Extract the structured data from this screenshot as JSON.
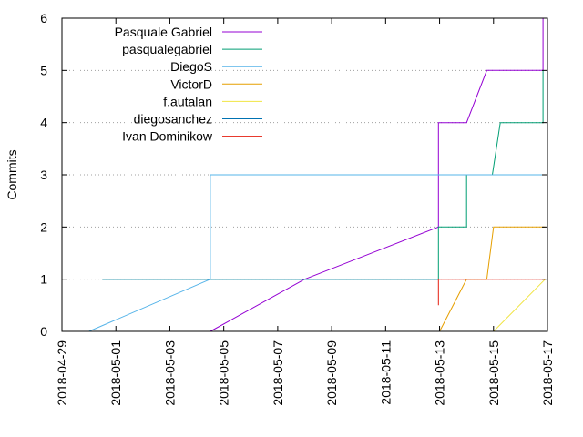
{
  "chart_data": {
    "type": "line",
    "title": "",
    "xlabel": "",
    "ylabel": "Commits",
    "xlim": [
      "2018-04-29",
      "2018-05-17"
    ],
    "ylim": [
      0,
      6
    ],
    "x_ticks": [
      "2018-04-29",
      "2018-05-01",
      "2018-05-03",
      "2018-05-05",
      "2018-05-07",
      "2018-05-09",
      "2018-05-11",
      "2018-05-13",
      "2018-05-15",
      "2018-05-17"
    ],
    "y_ticks": [
      0,
      1,
      2,
      3,
      4,
      5,
      6
    ],
    "grid": "horizontal dotted",
    "legend_position": "top-left",
    "series": [
      {
        "name": "Pasquale Gabriel",
        "color": "#9400d3",
        "points": [
          [
            "2018-05-04 12:00",
            0
          ],
          [
            "2018-05-08 00:00",
            1
          ],
          [
            "2018-05-12 23:00",
            2
          ],
          [
            "2018-05-12 23:00",
            4
          ],
          [
            "2018-05-14 00:00",
            4
          ],
          [
            "2018-05-14 18:00",
            5
          ],
          [
            "2018-05-16 20:00",
            5
          ],
          [
            "2018-05-16 20:00",
            6
          ]
        ]
      },
      {
        "name": "pasqualegabriel",
        "color": "#009e73",
        "points": [
          [
            "2018-04-30 12:00",
            1
          ],
          [
            "2018-05-12 23:00",
            1
          ],
          [
            "2018-05-12 23:00",
            2
          ],
          [
            "2018-05-14 00:00",
            2
          ],
          [
            "2018-05-14 00:00",
            3
          ],
          [
            "2018-05-14 23:00",
            3
          ],
          [
            "2018-05-15 06:00",
            4
          ],
          [
            "2018-05-16 20:00",
            4
          ],
          [
            "2018-05-16 20:00",
            5
          ]
        ]
      },
      {
        "name": "DiegoS",
        "color": "#56b4e9",
        "points": [
          [
            "2018-04-30 00:00",
            0
          ],
          [
            "2018-05-04 12:00",
            1
          ],
          [
            "2018-05-04 12:00",
            3
          ],
          [
            "2018-05-16 22:00",
            3
          ]
        ]
      },
      {
        "name": "VictorD",
        "color": "#e69f00",
        "points": [
          [
            "2018-05-13 00:00",
            0
          ],
          [
            "2018-05-14 00:00",
            1
          ],
          [
            "2018-05-14 18:00",
            1
          ],
          [
            "2018-05-15 00:00",
            2
          ],
          [
            "2018-05-16 22:00",
            2
          ]
        ]
      },
      {
        "name": "f.autalan",
        "color": "#f0e442",
        "points": [
          [
            "2018-05-15 00:00",
            0
          ],
          [
            "2018-05-16 22:00",
            1
          ]
        ]
      },
      {
        "name": "diegosanchez",
        "color": "#0072b2",
        "points": [
          [
            "2018-04-30 12:00",
            1
          ],
          [
            "2018-05-12 23:00",
            1
          ]
        ]
      },
      {
        "name": "Ivan Dominikow",
        "color": "#e51e10",
        "points": [
          [
            "2018-05-12 23:00",
            0.5
          ],
          [
            "2018-05-12 23:00",
            1
          ],
          [
            "2018-05-16 22:00",
            1
          ]
        ]
      }
    ]
  }
}
